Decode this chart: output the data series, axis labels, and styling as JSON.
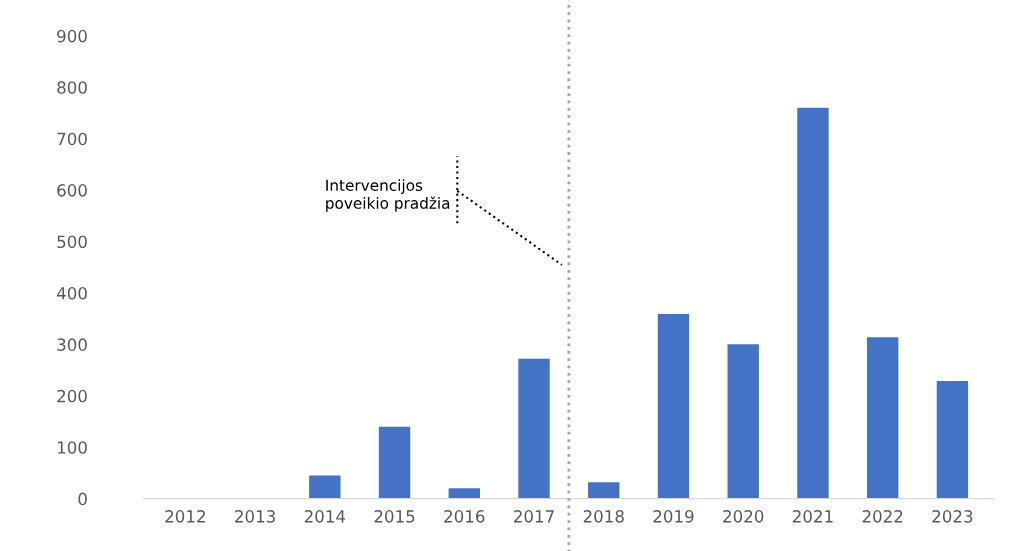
{
  "chart_data": {
    "type": "bar",
    "categories": [
      "2012",
      "2013",
      "2014",
      "2015",
      "2016",
      "2017",
      "2018",
      "2019",
      "2020",
      "2021",
      "2022",
      "2023"
    ],
    "values": [
      0,
      0,
      45,
      140,
      20,
      272,
      32,
      359,
      300,
      760,
      314,
      229
    ],
    "color": "#4472c4",
    "ylim": [
      0,
      900
    ],
    "yticks": [
      0,
      100,
      200,
      300,
      400,
      500,
      600,
      700,
      800,
      900
    ],
    "grid": false,
    "legend": false,
    "annotations": [
      "Intervencijos\npoveikio pradžia"
    ]
  }
}
